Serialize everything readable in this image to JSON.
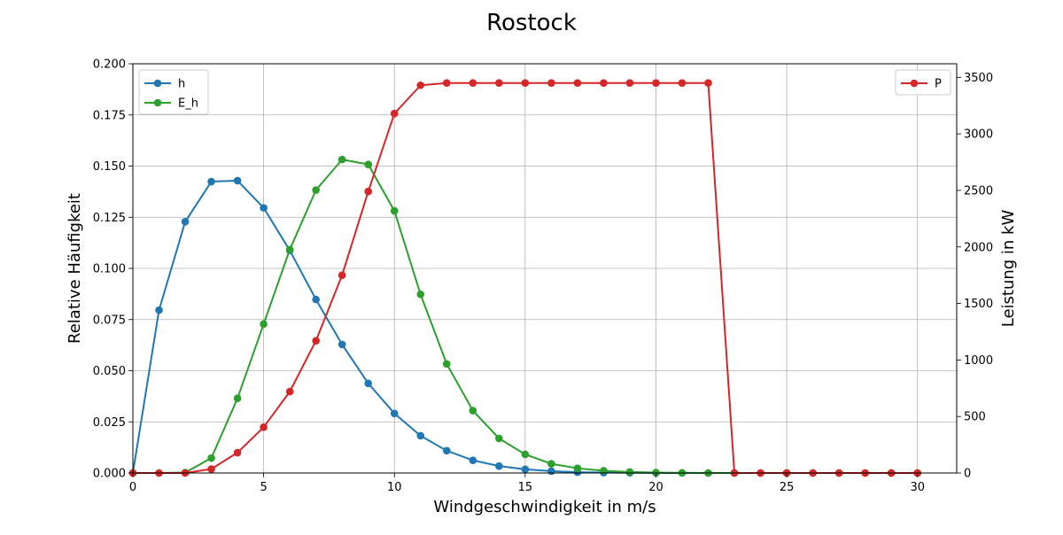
{
  "chart_data": {
    "type": "line",
    "title": "Rostock",
    "xlabel": "Windgeschwindigkeit in m/s",
    "ylabel": "Relative Häufigkeit",
    "y2label": "Leistung in kW",
    "xlim": [
      0,
      31.5
    ],
    "ylim": [
      0,
      0.2
    ],
    "y2lim": [
      0,
      3620
    ],
    "grid": true,
    "x_ticks": [
      0,
      5,
      10,
      15,
      20,
      25,
      30
    ],
    "y_ticks": [
      0.0,
      0.025,
      0.05,
      0.075,
      0.1,
      0.125,
      0.15,
      0.175,
      0.2
    ],
    "y_tick_labels": [
      "0.000",
      "0.025",
      "0.050",
      "0.075",
      "0.100",
      "0.125",
      "0.150",
      "0.175",
      "0.200"
    ],
    "y2_ticks": [
      0,
      500,
      1000,
      1500,
      2000,
      2500,
      3000,
      3500
    ],
    "x": [
      0,
      1,
      2,
      3,
      4,
      5,
      6,
      7,
      8,
      9,
      10,
      11,
      12,
      13,
      14,
      15,
      16,
      17,
      18,
      19,
      20,
      21,
      22,
      23,
      24,
      25,
      26,
      27,
      28,
      29,
      30
    ],
    "series": [
      {
        "name": "h",
        "axis": "left",
        "color": "#1f77b4",
        "values": [
          0.0,
          0.0796,
          0.1228,
          0.1424,
          0.1429,
          0.1296,
          0.1088,
          0.0848,
          0.0628,
          0.0438,
          0.0291,
          0.0182,
          0.0109,
          0.0062,
          0.0034,
          0.0018,
          0.0009,
          0.0004,
          0.0002,
          0.0001,
          0.0,
          0.0,
          0.0,
          0.0,
          0.0,
          0.0,
          0.0,
          0.0,
          0.0,
          0.0,
          0.0
        ]
      },
      {
        "name": "E_h",
        "axis": "left",
        "color": "#2ca02c",
        "values": [
          0.0,
          0.0,
          0.0002,
          0.0073,
          0.0365,
          0.0728,
          0.1092,
          0.1383,
          0.1532,
          0.1508,
          0.1281,
          0.0873,
          0.0533,
          0.0305,
          0.0169,
          0.0091,
          0.0045,
          0.0023,
          0.0011,
          0.0005,
          0.0002,
          0.0001,
          0.0,
          0.0,
          0.0,
          0.0,
          0.0,
          0.0,
          0.0,
          0.0,
          0.0
        ]
      },
      {
        "name": "P",
        "axis": "right",
        "color": "#d62728",
        "values": [
          0,
          0,
          0,
          35,
          180,
          405,
          720,
          1170,
          1750,
          2490,
          3180,
          3430,
          3450,
          3450,
          3450,
          3450,
          3450,
          3450,
          3450,
          3450,
          3450,
          3450,
          3450,
          0,
          0,
          0,
          0,
          0,
          0,
          0,
          0
        ]
      }
    ],
    "legend_left": {
      "placement": "upper-left",
      "entries": [
        "h",
        "E_h"
      ]
    },
    "legend_right": {
      "placement": "upper-right",
      "entries": [
        "P"
      ]
    }
  }
}
